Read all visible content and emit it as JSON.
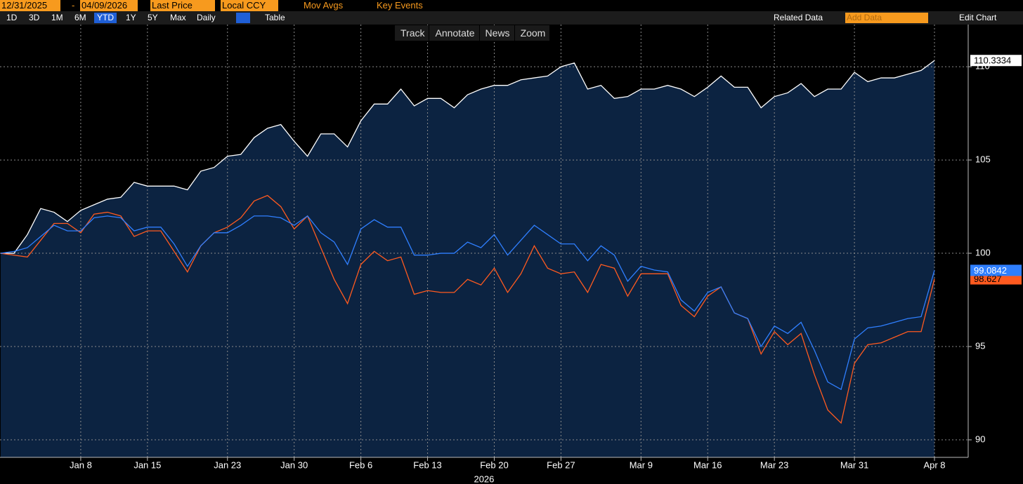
{
  "toolbar": {
    "start_date": "12/31/2025",
    "separator": "-",
    "end_date": "04/09/2026",
    "field": "Last Price",
    "currency": "Local CCY",
    "mov_avgs": "Mov Avgs",
    "key_events": "Key Events",
    "ranges": [
      "1D",
      "3D",
      "1M",
      "6M",
      "YTD",
      "1Y",
      "5Y",
      "Max"
    ],
    "frequency": "Daily",
    "table": "Table",
    "related_data": "Related Data",
    "add_data": "Add Data",
    "edit_chart": "Edit Chart"
  },
  "chart_tools": [
    "Track",
    "Annotate",
    "News",
    "Zoom"
  ],
  "chart_data": {
    "type": "line",
    "xlabel": "2026",
    "categories": [
      null,
      null,
      null,
      null,
      null,
      null,
      "Jan 8",
      null,
      null,
      null,
      null,
      "Jan 15",
      null,
      null,
      null,
      null,
      null,
      "Jan 23",
      null,
      null,
      null,
      null,
      "Jan 30",
      null,
      null,
      null,
      null,
      "Feb 6",
      null,
      null,
      null,
      null,
      "Feb 13",
      null,
      null,
      null,
      null,
      "Feb 20",
      null,
      null,
      null,
      null,
      "Feb 27",
      null,
      null,
      null,
      null,
      null,
      "Mar 9",
      null,
      null,
      null,
      null,
      "Mar 16",
      null,
      null,
      null,
      null,
      "Mar 23",
      null,
      null,
      null,
      null,
      null,
      "Mar 31",
      null,
      null,
      null,
      null,
      null,
      "Apr 8"
    ],
    "series": [
      {
        "color": "#ffffff",
        "area": "#0c2341",
        "label_bg": "#ffffff",
        "label_fg": "#000000",
        "values": [
          100,
          100.0,
          101,
          102.4,
          102.2,
          101.7,
          102.3,
          102.6,
          102.9,
          103.0,
          103.8,
          103.6,
          103.6,
          103.6,
          103.4,
          104.4,
          104.6,
          105.2,
          105.3,
          106.2,
          106.7,
          106.9,
          106.0,
          105.2,
          106.4,
          106.4,
          105.7,
          107.1,
          108.0,
          108.0,
          108.8,
          107.9,
          108.3,
          108.3,
          107.8,
          108.5,
          108.8,
          109.0,
          109.0,
          109.3,
          109.4,
          109.5,
          110.0,
          110.2,
          108.8,
          109.0,
          108.3,
          108.4,
          108.8,
          108.8,
          109.0,
          108.8,
          108.4,
          108.9,
          109.5,
          108.9,
          108.9,
          107.8,
          108.4,
          108.6,
          109.1,
          108.4,
          108.8,
          108.8,
          109.7,
          109.2,
          109.4,
          109.4,
          109.6,
          109.8,
          110.3334
        ]
      },
      {
        "color": "#ff5a1f",
        "label_bg": "#ff5a1f",
        "label_fg": "#000000",
        "values": [
          100,
          99.9,
          99.8,
          100.7,
          101.6,
          101.6,
          101.1,
          102.1,
          102.2,
          102.0,
          100.9,
          101.2,
          101.2,
          100.1,
          99.0,
          100.4,
          101.1,
          101.4,
          101.9,
          102.8,
          103.1,
          102.5,
          101.3,
          102.0,
          100.3,
          98.6,
          97.3,
          99.4,
          100.1,
          99.6,
          99.8,
          97.8,
          98.0,
          97.9,
          97.9,
          98.6,
          98.3,
          99.2,
          97.9,
          98.9,
          100.4,
          99.2,
          98.9,
          99.0,
          97.9,
          99.4,
          99.2,
          97.7,
          98.9,
          98.9,
          98.9,
          97.2,
          96.6,
          97.7,
          98.2,
          96.8,
          96.5,
          94.6,
          95.8,
          95.1,
          95.7,
          93.5,
          91.6,
          90.9,
          94.1,
          95.1,
          95.2,
          95.5,
          95.8,
          95.8,
          98.627
        ]
      },
      {
        "color": "#2f7fff",
        "label_bg": "#2f7fff",
        "label_fg": "#ffffff",
        "values": [
          100,
          100.1,
          100.3,
          100.9,
          101.5,
          101.2,
          101.2,
          101.9,
          102.0,
          101.9,
          101.2,
          101.4,
          101.4,
          100.5,
          99.3,
          100.4,
          101.1,
          101.1,
          101.5,
          102.0,
          102.0,
          101.9,
          101.5,
          102.0,
          101.1,
          100.6,
          99.4,
          101.3,
          101.8,
          101.4,
          101.4,
          99.9,
          99.9,
          100.0,
          100.0,
          100.6,
          100.3,
          101.0,
          99.9,
          100.7,
          101.5,
          101.0,
          100.5,
          100.5,
          99.6,
          100.4,
          99.9,
          98.5,
          99.3,
          99.1,
          99.0,
          97.5,
          96.9,
          97.9,
          98.2,
          96.8,
          96.5,
          95.0,
          96.1,
          95.7,
          96.3,
          94.8,
          93.1,
          92.7,
          95.4,
          96.0,
          96.1,
          96.3,
          96.5,
          96.6,
          99.0842
        ]
      }
    ],
    "ylim": [
      89.06,
      112.26
    ],
    "yticks": [
      90,
      95,
      100,
      105,
      110
    ],
    "grid": true,
    "y_axis_side": "right"
  }
}
